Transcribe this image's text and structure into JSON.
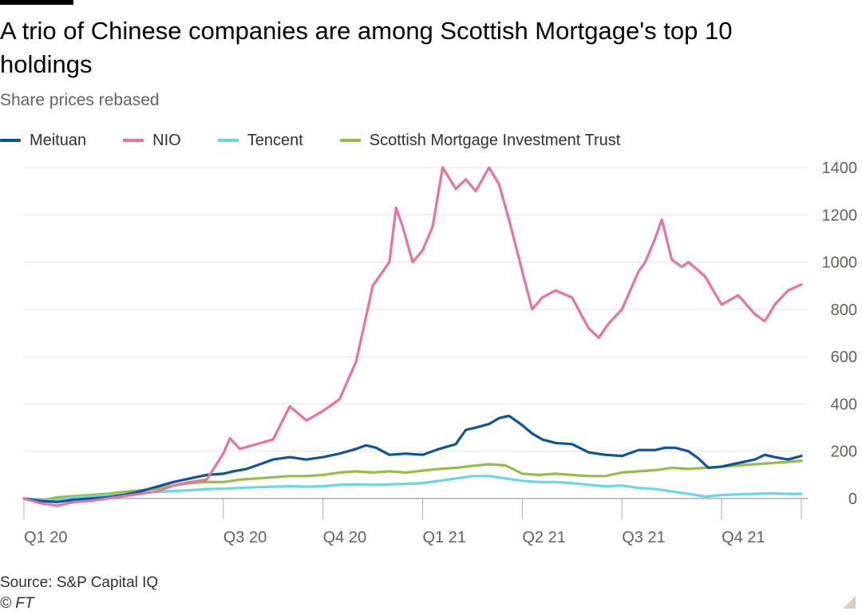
{
  "header": {
    "title": "A trio of Chinese companies are among Scottish Mortgage's top 10 holdings",
    "subtitle": "Share prices rebased"
  },
  "footer": {
    "source": "Source: S&P Capital IQ",
    "copyright": "© FT"
  },
  "chart_data": {
    "type": "line",
    "title": "A trio of Chinese companies are among Scottish Mortgage's top 10 holdings",
    "subtitle": "Share prices rebased",
    "xlabel": "",
    "ylabel": "",
    "x_range": [
      0,
      23.4
    ],
    "ylim": [
      -40,
      1450
    ],
    "y_ticks": [
      0,
      200,
      400,
      600,
      800,
      1000,
      1200,
      1400
    ],
    "x_ticks": [
      {
        "label": "Q1 20",
        "x": 0
      },
      {
        "label": "Q3 20",
        "x": 6
      },
      {
        "label": "Q4 20",
        "x": 9
      },
      {
        "label": "Q1 21",
        "x": 12
      },
      {
        "label": "Q2 21",
        "x": 15
      },
      {
        "label": "Q3 21",
        "x": 18
      },
      {
        "label": "Q4 21",
        "x": 21
      }
    ],
    "x_unit": "months since start of Q1 2020",
    "grid": "horizontal",
    "y_axis_side": "right",
    "legend_position": "top-left",
    "series": [
      {
        "name": "Meituan",
        "color": "#0f5499",
        "points": [
          [
            0,
            0
          ],
          [
            0.5,
            -10
          ],
          [
            1,
            -15
          ],
          [
            1.5,
            -5
          ],
          [
            2,
            0
          ],
          [
            2.5,
            5
          ],
          [
            3,
            15
          ],
          [
            3.5,
            30
          ],
          [
            4,
            50
          ],
          [
            4.5,
            70
          ],
          [
            5,
            85
          ],
          [
            5.5,
            100
          ],
          [
            6,
            105
          ],
          [
            6.3,
            115
          ],
          [
            6.7,
            125
          ],
          [
            7,
            140
          ],
          [
            7.5,
            165
          ],
          [
            8,
            175
          ],
          [
            8.5,
            165
          ],
          [
            9,
            175
          ],
          [
            9.5,
            190
          ],
          [
            10,
            210
          ],
          [
            10.3,
            225
          ],
          [
            10.6,
            215
          ],
          [
            11,
            185
          ],
          [
            11.5,
            190
          ],
          [
            12,
            185
          ],
          [
            12.5,
            210
          ],
          [
            13,
            230
          ],
          [
            13.3,
            290
          ],
          [
            13.6,
            300
          ],
          [
            14,
            315
          ],
          [
            14.3,
            340
          ],
          [
            14.6,
            350
          ],
          [
            15,
            310
          ],
          [
            15.3,
            275
          ],
          [
            15.6,
            250
          ],
          [
            16,
            235
          ],
          [
            16.5,
            230
          ],
          [
            17,
            195
          ],
          [
            17.5,
            185
          ],
          [
            18,
            180
          ],
          [
            18.5,
            205
          ],
          [
            19,
            205
          ],
          [
            19.3,
            215
          ],
          [
            19.6,
            215
          ],
          [
            20,
            200
          ],
          [
            20.3,
            170
          ],
          [
            20.6,
            130
          ],
          [
            21,
            135
          ],
          [
            21.5,
            150
          ],
          [
            22,
            165
          ],
          [
            22.3,
            185
          ],
          [
            22.6,
            175
          ],
          [
            23,
            165
          ],
          [
            23.4,
            180
          ]
        ]
      },
      {
        "name": "NIO",
        "color": "#e9739e",
        "points": [
          [
            0,
            0
          ],
          [
            0.5,
            -20
          ],
          [
            1,
            -30
          ],
          [
            1.5,
            -15
          ],
          [
            2,
            -10
          ],
          [
            2.5,
            0
          ],
          [
            3,
            10
          ],
          [
            3.5,
            20
          ],
          [
            4,
            30
          ],
          [
            4.5,
            55
          ],
          [
            5,
            70
          ],
          [
            5.5,
            80
          ],
          [
            6,
            190
          ],
          [
            6.2,
            255
          ],
          [
            6.5,
            210
          ],
          [
            7,
            230
          ],
          [
            7.5,
            250
          ],
          [
            8,
            390
          ],
          [
            8.5,
            330
          ],
          [
            9,
            370
          ],
          [
            9.5,
            420
          ],
          [
            10,
            580
          ],
          [
            10.5,
            900
          ],
          [
            11,
            1000
          ],
          [
            11.2,
            1230
          ],
          [
            11.4,
            1150
          ],
          [
            11.7,
            1000
          ],
          [
            12,
            1050
          ],
          [
            12.3,
            1150
          ],
          [
            12.6,
            1400
          ],
          [
            13,
            1310
          ],
          [
            13.3,
            1350
          ],
          [
            13.6,
            1300
          ],
          [
            14,
            1400
          ],
          [
            14.3,
            1330
          ],
          [
            14.6,
            1180
          ],
          [
            15,
            960
          ],
          [
            15.3,
            800
          ],
          [
            15.6,
            850
          ],
          [
            16,
            880
          ],
          [
            16.5,
            850
          ],
          [
            17,
            720
          ],
          [
            17.3,
            680
          ],
          [
            17.6,
            740
          ],
          [
            18,
            800
          ],
          [
            18.5,
            960
          ],
          [
            18.7,
            1000
          ],
          [
            19,
            1100
          ],
          [
            19.2,
            1180
          ],
          [
            19.5,
            1010
          ],
          [
            19.8,
            980
          ],
          [
            20,
            1000
          ],
          [
            20.5,
            940
          ],
          [
            21,
            820
          ],
          [
            21.5,
            860
          ],
          [
            22,
            780
          ],
          [
            22.3,
            750
          ],
          [
            22.6,
            820
          ],
          [
            23,
            880
          ],
          [
            23.4,
            905
          ]
        ]
      },
      {
        "name": "Tencent",
        "color": "#65d8e6",
        "points": [
          [
            0,
            0
          ],
          [
            0.5,
            -5
          ],
          [
            1,
            -8
          ],
          [
            1.5,
            5
          ],
          [
            2,
            8
          ],
          [
            2.5,
            12
          ],
          [
            3,
            18
          ],
          [
            3.5,
            25
          ],
          [
            4,
            28
          ],
          [
            4.5,
            32
          ],
          [
            5,
            35
          ],
          [
            5.5,
            40
          ],
          [
            6,
            42
          ],
          [
            6.5,
            45
          ],
          [
            7,
            48
          ],
          [
            7.5,
            50
          ],
          [
            8,
            52
          ],
          [
            8.5,
            50
          ],
          [
            9,
            52
          ],
          [
            9.5,
            58
          ],
          [
            10,
            60
          ],
          [
            10.5,
            58
          ],
          [
            11,
            60
          ],
          [
            11.5,
            62
          ],
          [
            12,
            65
          ],
          [
            12.5,
            75
          ],
          [
            13,
            85
          ],
          [
            13.5,
            95
          ],
          [
            14,
            95
          ],
          [
            14.5,
            85
          ],
          [
            15,
            75
          ],
          [
            15.5,
            70
          ],
          [
            16,
            70
          ],
          [
            16.5,
            65
          ],
          [
            17,
            58
          ],
          [
            17.5,
            52
          ],
          [
            18,
            55
          ],
          [
            18.5,
            45
          ],
          [
            19,
            40
          ],
          [
            19.5,
            30
          ],
          [
            20,
            20
          ],
          [
            20.5,
            8
          ],
          [
            21,
            15
          ],
          [
            21.5,
            18
          ],
          [
            22,
            20
          ],
          [
            22.5,
            22
          ],
          [
            23,
            20
          ],
          [
            23.4,
            20
          ]
        ]
      },
      {
        "name": "Scottish Mortgage Investment Trust",
        "color": "#96bd46",
        "points": [
          [
            0,
            0
          ],
          [
            0.5,
            -8
          ],
          [
            1,
            5
          ],
          [
            1.5,
            10
          ],
          [
            2,
            15
          ],
          [
            2.5,
            20
          ],
          [
            3,
            28
          ],
          [
            3.5,
            35
          ],
          [
            4,
            42
          ],
          [
            4.5,
            55
          ],
          [
            5,
            65
          ],
          [
            5.5,
            70
          ],
          [
            6,
            70
          ],
          [
            6.5,
            80
          ],
          [
            7,
            85
          ],
          [
            7.5,
            90
          ],
          [
            8,
            95
          ],
          [
            8.5,
            95
          ],
          [
            9,
            100
          ],
          [
            9.5,
            110
          ],
          [
            10,
            115
          ],
          [
            10.5,
            110
          ],
          [
            11,
            115
          ],
          [
            11.5,
            110
          ],
          [
            12,
            118
          ],
          [
            12.5,
            125
          ],
          [
            13,
            130
          ],
          [
            13.5,
            138
          ],
          [
            14,
            145
          ],
          [
            14.5,
            140
          ],
          [
            15,
            105
          ],
          [
            15.5,
            100
          ],
          [
            16,
            105
          ],
          [
            16.5,
            100
          ],
          [
            17,
            95
          ],
          [
            17.5,
            95
          ],
          [
            18,
            110
          ],
          [
            18.5,
            115
          ],
          [
            19,
            120
          ],
          [
            19.5,
            130
          ],
          [
            20,
            125
          ],
          [
            20.5,
            130
          ],
          [
            21,
            135
          ],
          [
            21.5,
            140
          ],
          [
            22,
            145
          ],
          [
            22.5,
            150
          ],
          [
            23,
            155
          ],
          [
            23.4,
            160
          ]
        ]
      }
    ]
  }
}
